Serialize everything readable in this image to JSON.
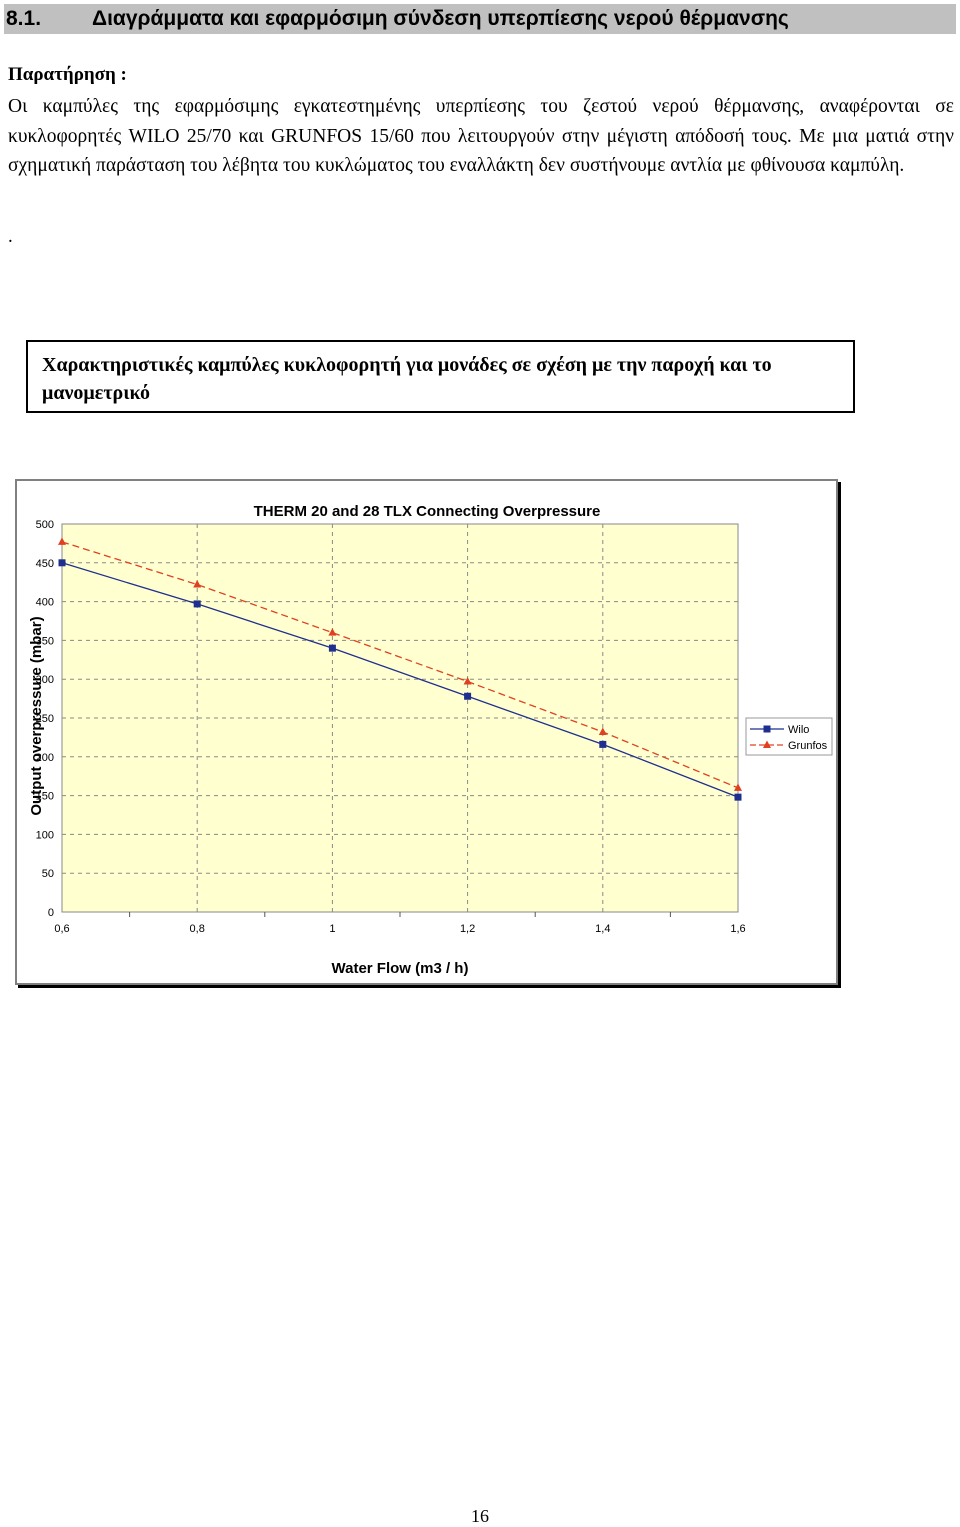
{
  "section": {
    "number": "8.1.",
    "title": "Διαγράμματα και εφαρμόσιμη σύνδεση υπερπίεσης νερού θέρμανσης"
  },
  "note": {
    "label": "Παρατήρηση :",
    "text": "Οι καμπύλες της εφαρμόσιμης εγκατεστημένης υπερπίεσης του ζεστού νερού θέρμανσης, αναφέρονται σε κυκλοφορητές WILO 25/70 και GRUNFOS 15/60 που λειτουργούν στην μέγιστη απόδοσή τους. Με μια ματιά στην σχηματική παράσταση του λέβητα του κυκλώματος του εναλλάκτη δεν συστήνουμε αντλία με φθίνουσα καμπύλη."
  },
  "separator_dot": ".",
  "caption": "Χαρακτηριστικές καμπύλες κυκλοφορητή για μονάδες σε σχέση με την παροχή και το μανομετρικό",
  "chart_data": {
    "type": "line",
    "title": "THERM 20 and 28 TLX Connecting Overpressure",
    "xlabel": "Water Flow (m3 / h)",
    "ylabel": "Output  overpressure (mbar)",
    "x": [
      0.6,
      0.8,
      1.0,
      1.2,
      1.4,
      1.6
    ],
    "x_tick_labels": [
      "0,6",
      "0,8",
      "1",
      "1,2",
      "1,4",
      "1,6"
    ],
    "xlim": [
      0.6,
      1.6
    ],
    "y_ticks": [
      0,
      50,
      100,
      150,
      200,
      250,
      300,
      350,
      400,
      450,
      500
    ],
    "ylim": [
      0,
      500
    ],
    "grid": true,
    "background": "#ffffd0",
    "legend_position": "right",
    "series": [
      {
        "name": "Wilo",
        "values": [
          450,
          397,
          340,
          278,
          216,
          148
        ],
        "color": "#1f2f8f",
        "marker": "square",
        "dash": "solid"
      },
      {
        "name": "Grunfos",
        "values": [
          477,
          422,
          360,
          297,
          232,
          160
        ],
        "color": "#e04020",
        "marker": "triangle",
        "dash": "dashed"
      }
    ]
  },
  "page_number": "16"
}
